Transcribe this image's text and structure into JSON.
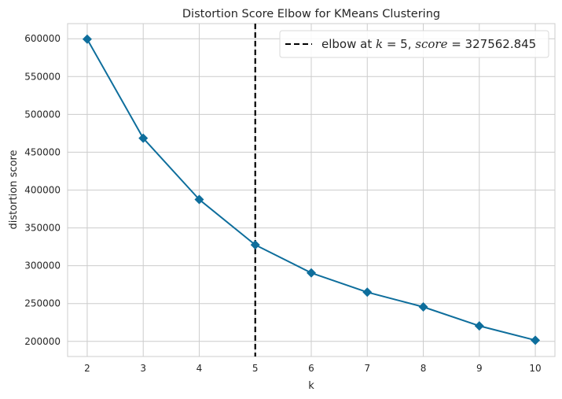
{
  "chart_data": {
    "type": "line",
    "title": "Distortion Score Elbow for KMeans Clustering",
    "xlabel": "k",
    "ylabel": "distortion score",
    "x": [
      2,
      3,
      4,
      5,
      6,
      7,
      8,
      9,
      10
    ],
    "series": [
      {
        "values": [
          599500,
          468500,
          387500,
          327562.845,
          290500,
          265000,
          245500,
          220500,
          201500
        ],
        "color": "#0e6e9c",
        "marker": "diamond"
      }
    ],
    "xlim": [
      1.65,
      10.35
    ],
    "ylim": [
      180000,
      620000
    ],
    "xticks": [
      2,
      3,
      4,
      5,
      6,
      7,
      8,
      9,
      10
    ],
    "yticks": [
      200000,
      250000,
      300000,
      350000,
      400000,
      450000,
      500000,
      550000,
      600000
    ],
    "grid": true,
    "elbow": {
      "k": 5,
      "color": "#000000",
      "legend_prefix": "elbow at ",
      "legend_k_symbol": "k",
      "legend_k_eq": " = 5, ",
      "legend_score_symbol": "score",
      "legend_score_eq": " = 327562.845"
    },
    "legend_position": "top-right"
  }
}
